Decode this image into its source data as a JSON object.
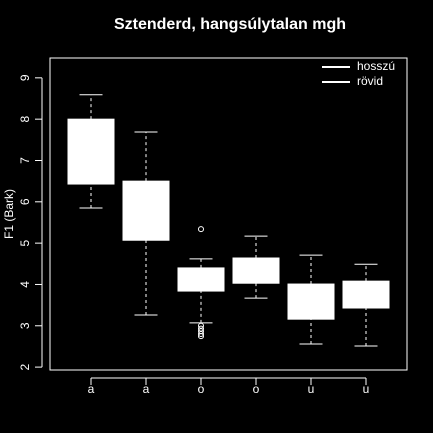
{
  "chart_data": {
    "type": "box",
    "title": "Sztenderd, hangsúlytalan mgh",
    "ylabel": "F1 (Bark)",
    "categories": [
      "a",
      "a",
      "o",
      "o",
      "u",
      "u"
    ],
    "color": "#ffffff",
    "boxes": [
      {
        "whisker_low": 5.85,
        "q1": 6.43,
        "q3": 8.0,
        "whisker_high": 8.59,
        "outliers": []
      },
      {
        "whisker_low": 3.26,
        "q1": 5.07,
        "q3": 6.5,
        "whisker_high": 7.69,
        "outliers": []
      },
      {
        "whisker_low": 3.07,
        "q1": 3.84,
        "q3": 4.4,
        "whisker_high": 4.62,
        "outliers": [
          5.34,
          3.0,
          2.93,
          2.87,
          2.8,
          2.75
        ]
      },
      {
        "whisker_low": 3.67,
        "q1": 4.03,
        "q3": 4.64,
        "whisker_high": 5.17,
        "outliers": []
      },
      {
        "whisker_low": 2.56,
        "q1": 3.16,
        "q3": 4.01,
        "whisker_high": 4.71,
        "outliers": []
      },
      {
        "whisker_low": 2.51,
        "q1": 3.43,
        "q3": 4.08,
        "whisker_high": 4.49,
        "outliers": []
      }
    ],
    "ylim": [
      1.93,
      9.48
    ],
    "yticks": [
      2,
      3,
      4,
      5,
      6,
      7,
      8,
      9
    ],
    "legend": {
      "position": "top-right",
      "entries": [
        {
          "name": "hosszú",
          "color": "#ffffff"
        },
        {
          "name": "rövid",
          "color": "#ffffff"
        }
      ]
    }
  }
}
